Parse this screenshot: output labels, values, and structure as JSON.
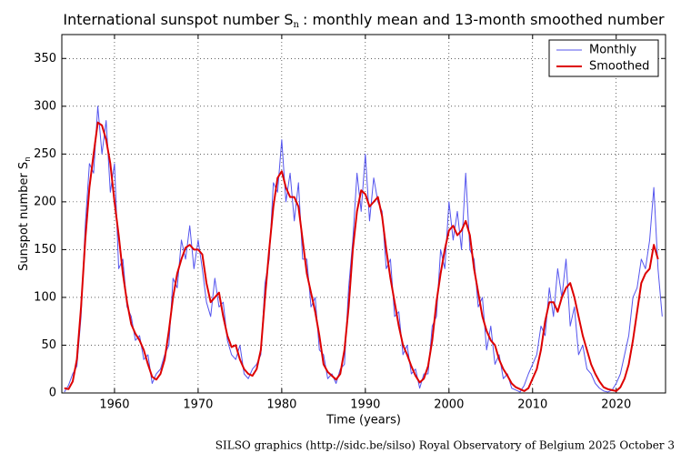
{
  "chart_data": {
    "type": "line",
    "title_main": "International sunspot number S",
    "title_sub": "n",
    "title_rest": ": monthly mean and 13-month smoothed number",
    "ylabel_main": "Sunspot number S",
    "ylabel_sub": "n",
    "xlabel": "Time (years)",
    "footer": "SILSO graphics (http://sidc.be/silso)  Royal Observatory of Belgium  2025 October 3",
    "xlim": [
      1953.7,
      2025.9
    ],
    "xticks": [
      1960,
      1970,
      1980,
      1990,
      2000,
      2010,
      2020
    ],
    "ylim": [
      0,
      375
    ],
    "yticks": [
      0,
      50,
      100,
      150,
      200,
      250,
      300,
      350
    ],
    "grid": true,
    "legend": "upper right",
    "x": [
      1954,
      1954.5,
      1955,
      1955.5,
      1956,
      1956.5,
      1957,
      1957.5,
      1958,
      1958.5,
      1959,
      1959.5,
      1960,
      1960.5,
      1961,
      1961.5,
      1962,
      1962.5,
      1963,
      1963.5,
      1964,
      1964.5,
      1965,
      1965.5,
      1966,
      1966.5,
      1967,
      1967.5,
      1968,
      1968.5,
      1969,
      1969.5,
      1970,
      1970.5,
      1971,
      1971.5,
      1972,
      1972.5,
      1973,
      1973.5,
      1974,
      1974.5,
      1975,
      1975.5,
      1976,
      1976.5,
      1977,
      1977.5,
      1978,
      1978.5,
      1979,
      1979.5,
      1980,
      1980.5,
      1981,
      1981.5,
      1982,
      1982.5,
      1983,
      1983.5,
      1984,
      1984.5,
      1985,
      1985.5,
      1986,
      1986.5,
      1987,
      1987.5,
      1988,
      1988.5,
      1989,
      1989.5,
      1990,
      1990.5,
      1991,
      1991.5,
      1992,
      1992.5,
      1993,
      1993.5,
      1994,
      1994.5,
      1995,
      1995.5,
      1996,
      1996.5,
      1997,
      1997.5,
      1998,
      1998.5,
      1999,
      1999.5,
      2000,
      2000.5,
      2001,
      2001.5,
      2002,
      2002.5,
      2003,
      2003.5,
      2004,
      2004.5,
      2005,
      2005.5,
      2006,
      2006.5,
      2007,
      2007.5,
      2008,
      2008.5,
      2009,
      2009.5,
      2010,
      2010.5,
      2011,
      2011.5,
      2012,
      2012.5,
      2013,
      2013.5,
      2014,
      2014.5,
      2015,
      2015.5,
      2016,
      2016.5,
      2017,
      2017.5,
      2018,
      2018.5,
      2019,
      2019.5,
      2020,
      2020.5,
      2021,
      2021.5,
      2022,
      2022.5,
      2023,
      2023.5,
      2024,
      2024.5,
      2025,
      2025.5
    ],
    "series": [
      {
        "name": "Monthly",
        "color": "#5555ee",
        "width": 1,
        "values": [
          1,
          8,
          20,
          28,
          80,
          175,
          240,
          230,
          300,
          250,
          285,
          210,
          240,
          130,
          140,
          90,
          80,
          55,
          60,
          35,
          40,
          10,
          20,
          25,
          40,
          50,
          120,
          110,
          160,
          140,
          175,
          130,
          160,
          130,
          95,
          80,
          120,
          90,
          95,
          55,
          40,
          35,
          50,
          20,
          15,
          25,
          30,
          40,
          115,
          140,
          220,
          210,
          265,
          200,
          230,
          180,
          220,
          140,
          140,
          90,
          100,
          45,
          40,
          15,
          20,
          10,
          25,
          30,
          110,
          160,
          230,
          190,
          250,
          180,
          225,
          200,
          190,
          130,
          140,
          80,
          85,
          40,
          50,
          20,
          25,
          5,
          20,
          20,
          70,
          80,
          150,
          130,
          200,
          160,
          190,
          150,
          230,
          150,
          140,
          90,
          100,
          45,
          70,
          30,
          40,
          15,
          20,
          5,
          3,
          1,
          8,
          20,
          30,
          40,
          70,
          60,
          110,
          80,
          130,
          100,
          140,
          70,
          90,
          40,
          50,
          25,
          20,
          10,
          5,
          2,
          1,
          3,
          10,
          20,
          40,
          60,
          100,
          110,
          140,
          130,
          160,
          215,
          130,
          80
        ]
      },
      {
        "name": "Smoothed",
        "color": "#dd0000",
        "width": 2,
        "values": [
          5,
          4,
          12,
          35,
          90,
          160,
          215,
          250,
          283,
          280,
          265,
          240,
          200,
          165,
          125,
          95,
          72,
          62,
          55,
          45,
          30,
          17,
          14,
          20,
          35,
          65,
          100,
          125,
          140,
          152,
          155,
          150,
          150,
          145,
          115,
          95,
          100,
          105,
          80,
          60,
          48,
          50,
          35,
          25,
          20,
          18,
          25,
          45,
          100,
          150,
          195,
          225,
          232,
          215,
          205,
          205,
          195,
          160,
          125,
          105,
          85,
          60,
          30,
          22,
          18,
          14,
          20,
          45,
          90,
          150,
          190,
          212,
          208,
          195,
          200,
          205,
          185,
          150,
          120,
          95,
          70,
          50,
          40,
          28,
          18,
          11,
          15,
          28,
          55,
          95,
          125,
          150,
          170,
          175,
          165,
          170,
          180,
          165,
          130,
          105,
          80,
          65,
          55,
          50,
          35,
          25,
          18,
          10,
          6,
          4,
          2,
          5,
          15,
          25,
          45,
          75,
          95,
          95,
          85,
          100,
          110,
          115,
          100,
          80,
          60,
          45,
          30,
          20,
          12,
          6,
          4,
          3,
          2,
          6,
          15,
          30,
          55,
          85,
          115,
          125,
          130,
          155,
          140,
          null
        ]
      }
    ]
  }
}
